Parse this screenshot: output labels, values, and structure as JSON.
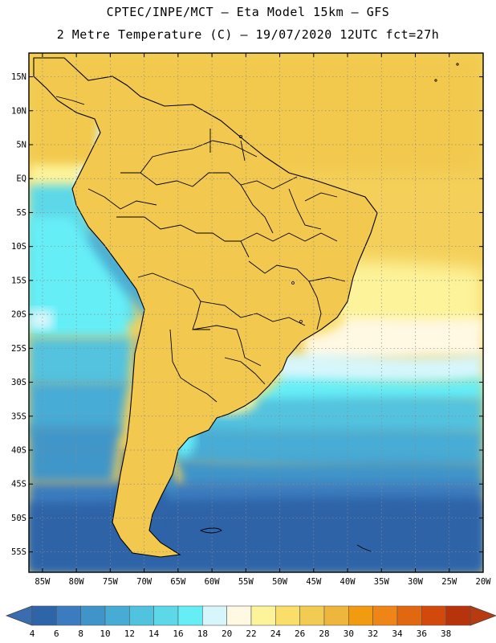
{
  "title_line1": "CPTEC/INPE/MCT –  Eta Model 15km – GFS",
  "title_line2": "2 Metre Temperature (C) – 19/07/2020 12UTC fct=27h",
  "lat_labels": [
    "15N",
    "10N",
    "5N",
    "EQ",
    "5S",
    "10S",
    "15S",
    "20S",
    "25S",
    "30S",
    "35S",
    "40S",
    "45S",
    "50S",
    "55S"
  ],
  "lat_values": [
    15,
    10,
    5,
    0,
    -5,
    -10,
    -15,
    -20,
    -25,
    -30,
    -35,
    -40,
    -45,
    -50,
    -55
  ],
  "lon_labels": [
    "85W",
    "80W",
    "75W",
    "70W",
    "65W",
    "60W",
    "55W",
    "50W",
    "45W",
    "40W",
    "35W",
    "30W",
    "25W",
    "20W"
  ],
  "lon_values": [
    -85,
    -80,
    -75,
    -70,
    -65,
    -60,
    -55,
    -50,
    -45,
    -40,
    -35,
    -30,
    -25,
    -20
  ],
  "colorbar": {
    "labels": [
      "4",
      "6",
      "8",
      "10",
      "12",
      "14",
      "16",
      "18",
      "20",
      "22",
      "24",
      "26",
      "28",
      "30",
      "32",
      "34",
      "36",
      "38"
    ],
    "colors": [
      "#2e64a8",
      "#3a7cbf",
      "#3f95c9",
      "#46acd6",
      "#52c3df",
      "#5cd8e8",
      "#66eef7",
      "#d6f6fb",
      "#fff8e2",
      "#fdf39a",
      "#f9df6a",
      "#f2cc52",
      "#eeb63c",
      "#f29a10",
      "#ef8516",
      "#e26711",
      "#d3490b",
      "#b6330b"
    ],
    "low_arrow_color": "#3a6cb0",
    "high_arrow_color": "#b83a10"
  }
}
